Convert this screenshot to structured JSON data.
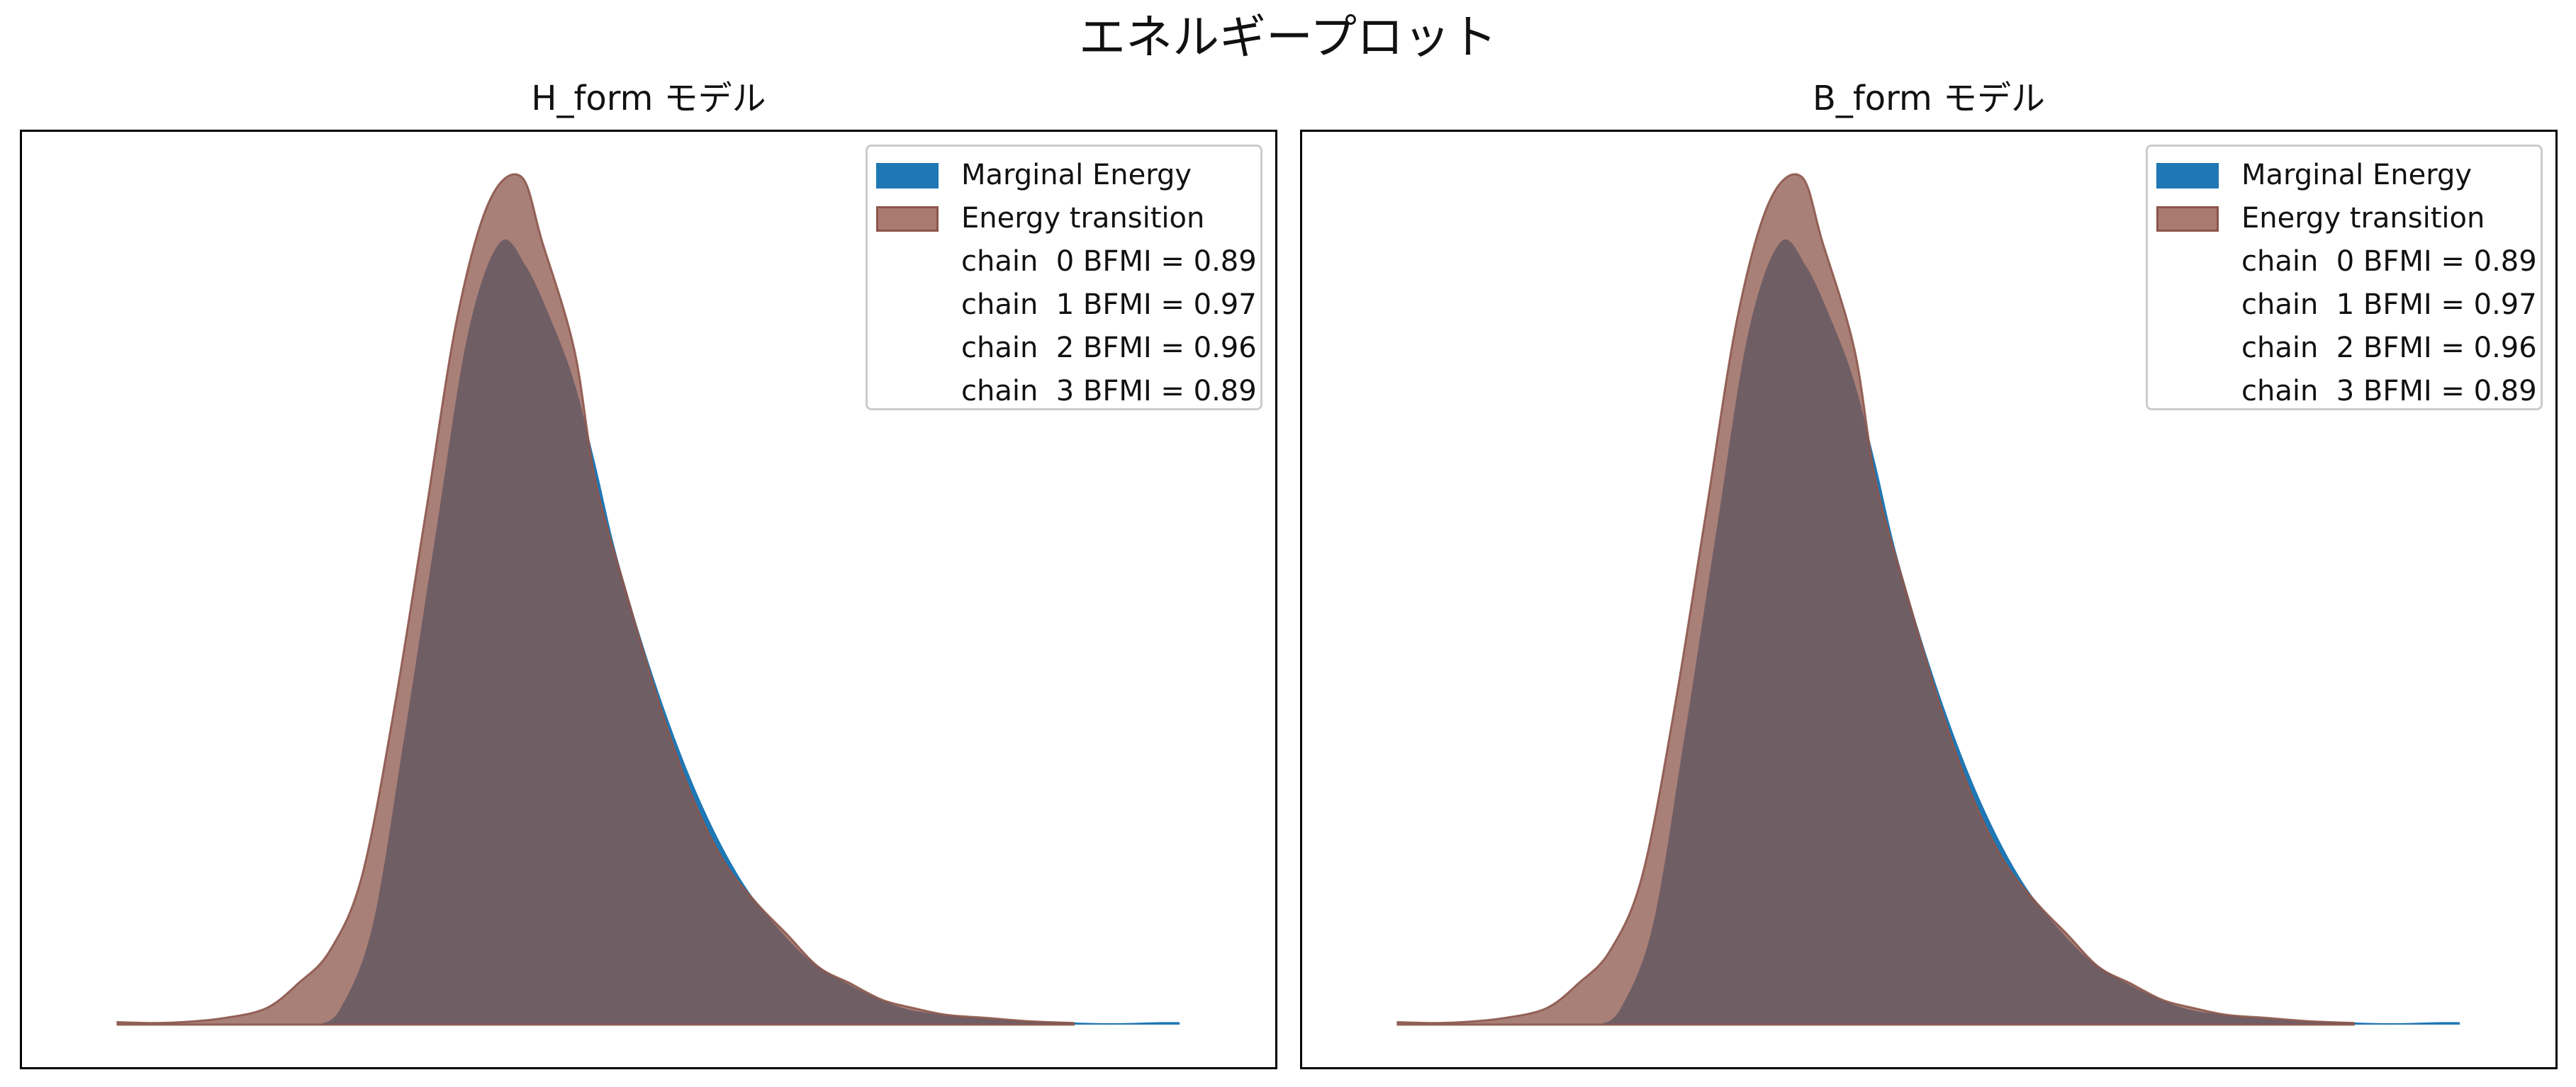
{
  "figure": {
    "title": "エネルギープロット"
  },
  "colors": {
    "marginal": "#1f77b4",
    "transition": "#a0685c",
    "transition_edge": "#8c564b",
    "overlap": "#6e5c61"
  },
  "chart_data": [
    {
      "type": "area",
      "title": "H_form モデル",
      "xlabel": "",
      "ylabel": "",
      "grid": false,
      "legend_position": "top-right",
      "x_range": [
        -0.05,
        1.05
      ],
      "y_range": [
        0,
        1.05
      ],
      "series": [
        {
          "name": "Marginal Energy",
          "color": "#1f77b4",
          "x": [
            0.19,
            0.21,
            0.24,
            0.27,
            0.3,
            0.33,
            0.36,
            0.385,
            0.41,
            0.43,
            0.45,
            0.47,
            0.5,
            0.53,
            0.56,
            0.59,
            0.62,
            0.65,
            0.68,
            0.71,
            0.74,
            0.77,
            0.8,
            0.83,
            0.86,
            0.89,
            0.92,
            0.95,
            0.98,
            1.0
          ],
          "y": [
            0.0,
            0.02,
            0.12,
            0.35,
            0.6,
            0.84,
            0.95,
            0.92,
            0.85,
            0.78,
            0.68,
            0.57,
            0.44,
            0.33,
            0.24,
            0.17,
            0.12,
            0.08,
            0.055,
            0.035,
            0.02,
            0.013,
            0.009,
            0.006,
            0.004,
            0.003,
            0.002,
            0.002,
            0.003,
            0.003
          ]
        },
        {
          "name": "Energy transition",
          "color": "#8c564b",
          "x": [
            0.0,
            0.03,
            0.06,
            0.1,
            0.14,
            0.17,
            0.2,
            0.23,
            0.26,
            0.29,
            0.32,
            0.35,
            0.38,
            0.4,
            0.43,
            0.45,
            0.48,
            0.51,
            0.54,
            0.57,
            0.6,
            0.63,
            0.66,
            0.69,
            0.72,
            0.75,
            0.78,
            0.82,
            0.86,
            0.9
          ],
          "y": [
            0.003,
            0.002,
            0.003,
            0.008,
            0.02,
            0.05,
            0.09,
            0.18,
            0.38,
            0.62,
            0.86,
            1.0,
            1.03,
            0.95,
            0.82,
            0.66,
            0.52,
            0.39,
            0.28,
            0.2,
            0.15,
            0.11,
            0.07,
            0.05,
            0.03,
            0.02,
            0.012,
            0.008,
            0.004,
            0.002
          ]
        }
      ],
      "legend": {
        "labels": [
          "Marginal Energy",
          "Energy transition"
        ],
        "bfmi": [
          "chain  0 BFMI = 0.89",
          "chain  1 BFMI = 0.97",
          "chain  2 BFMI = 0.96",
          "chain  3 BFMI = 0.89"
        ]
      }
    },
    {
      "type": "area",
      "title": "B_form モデル",
      "xlabel": "",
      "ylabel": "",
      "grid": false,
      "legend_position": "top-right",
      "x_range": [
        -0.05,
        1.05
      ],
      "y_range": [
        0,
        1.05
      ],
      "series": [
        {
          "name": "Marginal Energy",
          "color": "#1f77b4",
          "x": [
            0.19,
            0.21,
            0.24,
            0.27,
            0.3,
            0.33,
            0.36,
            0.385,
            0.41,
            0.43,
            0.45,
            0.47,
            0.5,
            0.53,
            0.56,
            0.59,
            0.62,
            0.65,
            0.68,
            0.71,
            0.74,
            0.77,
            0.8,
            0.83,
            0.86,
            0.89,
            0.92,
            0.95,
            0.98,
            1.0
          ],
          "y": [
            0.0,
            0.02,
            0.12,
            0.35,
            0.6,
            0.84,
            0.95,
            0.92,
            0.85,
            0.78,
            0.68,
            0.57,
            0.44,
            0.33,
            0.24,
            0.17,
            0.12,
            0.08,
            0.055,
            0.035,
            0.02,
            0.013,
            0.009,
            0.006,
            0.004,
            0.003,
            0.002,
            0.002,
            0.003,
            0.003
          ]
        },
        {
          "name": "Energy transition",
          "color": "#8c564b",
          "x": [
            0.0,
            0.03,
            0.06,
            0.1,
            0.14,
            0.17,
            0.2,
            0.23,
            0.26,
            0.29,
            0.32,
            0.35,
            0.38,
            0.4,
            0.43,
            0.45,
            0.48,
            0.51,
            0.54,
            0.57,
            0.6,
            0.63,
            0.66,
            0.69,
            0.72,
            0.75,
            0.78,
            0.82,
            0.86,
            0.9
          ],
          "y": [
            0.003,
            0.002,
            0.003,
            0.008,
            0.02,
            0.05,
            0.09,
            0.18,
            0.38,
            0.62,
            0.86,
            1.0,
            1.03,
            0.95,
            0.82,
            0.66,
            0.52,
            0.39,
            0.28,
            0.2,
            0.15,
            0.11,
            0.07,
            0.05,
            0.03,
            0.02,
            0.012,
            0.008,
            0.004,
            0.002
          ]
        }
      ],
      "legend": {
        "labels": [
          "Marginal Energy",
          "Energy transition"
        ],
        "bfmi": [
          "chain  0 BFMI = 0.89",
          "chain  1 BFMI = 0.97",
          "chain  2 BFMI = 0.96",
          "chain  3 BFMI = 0.89"
        ]
      }
    }
  ]
}
